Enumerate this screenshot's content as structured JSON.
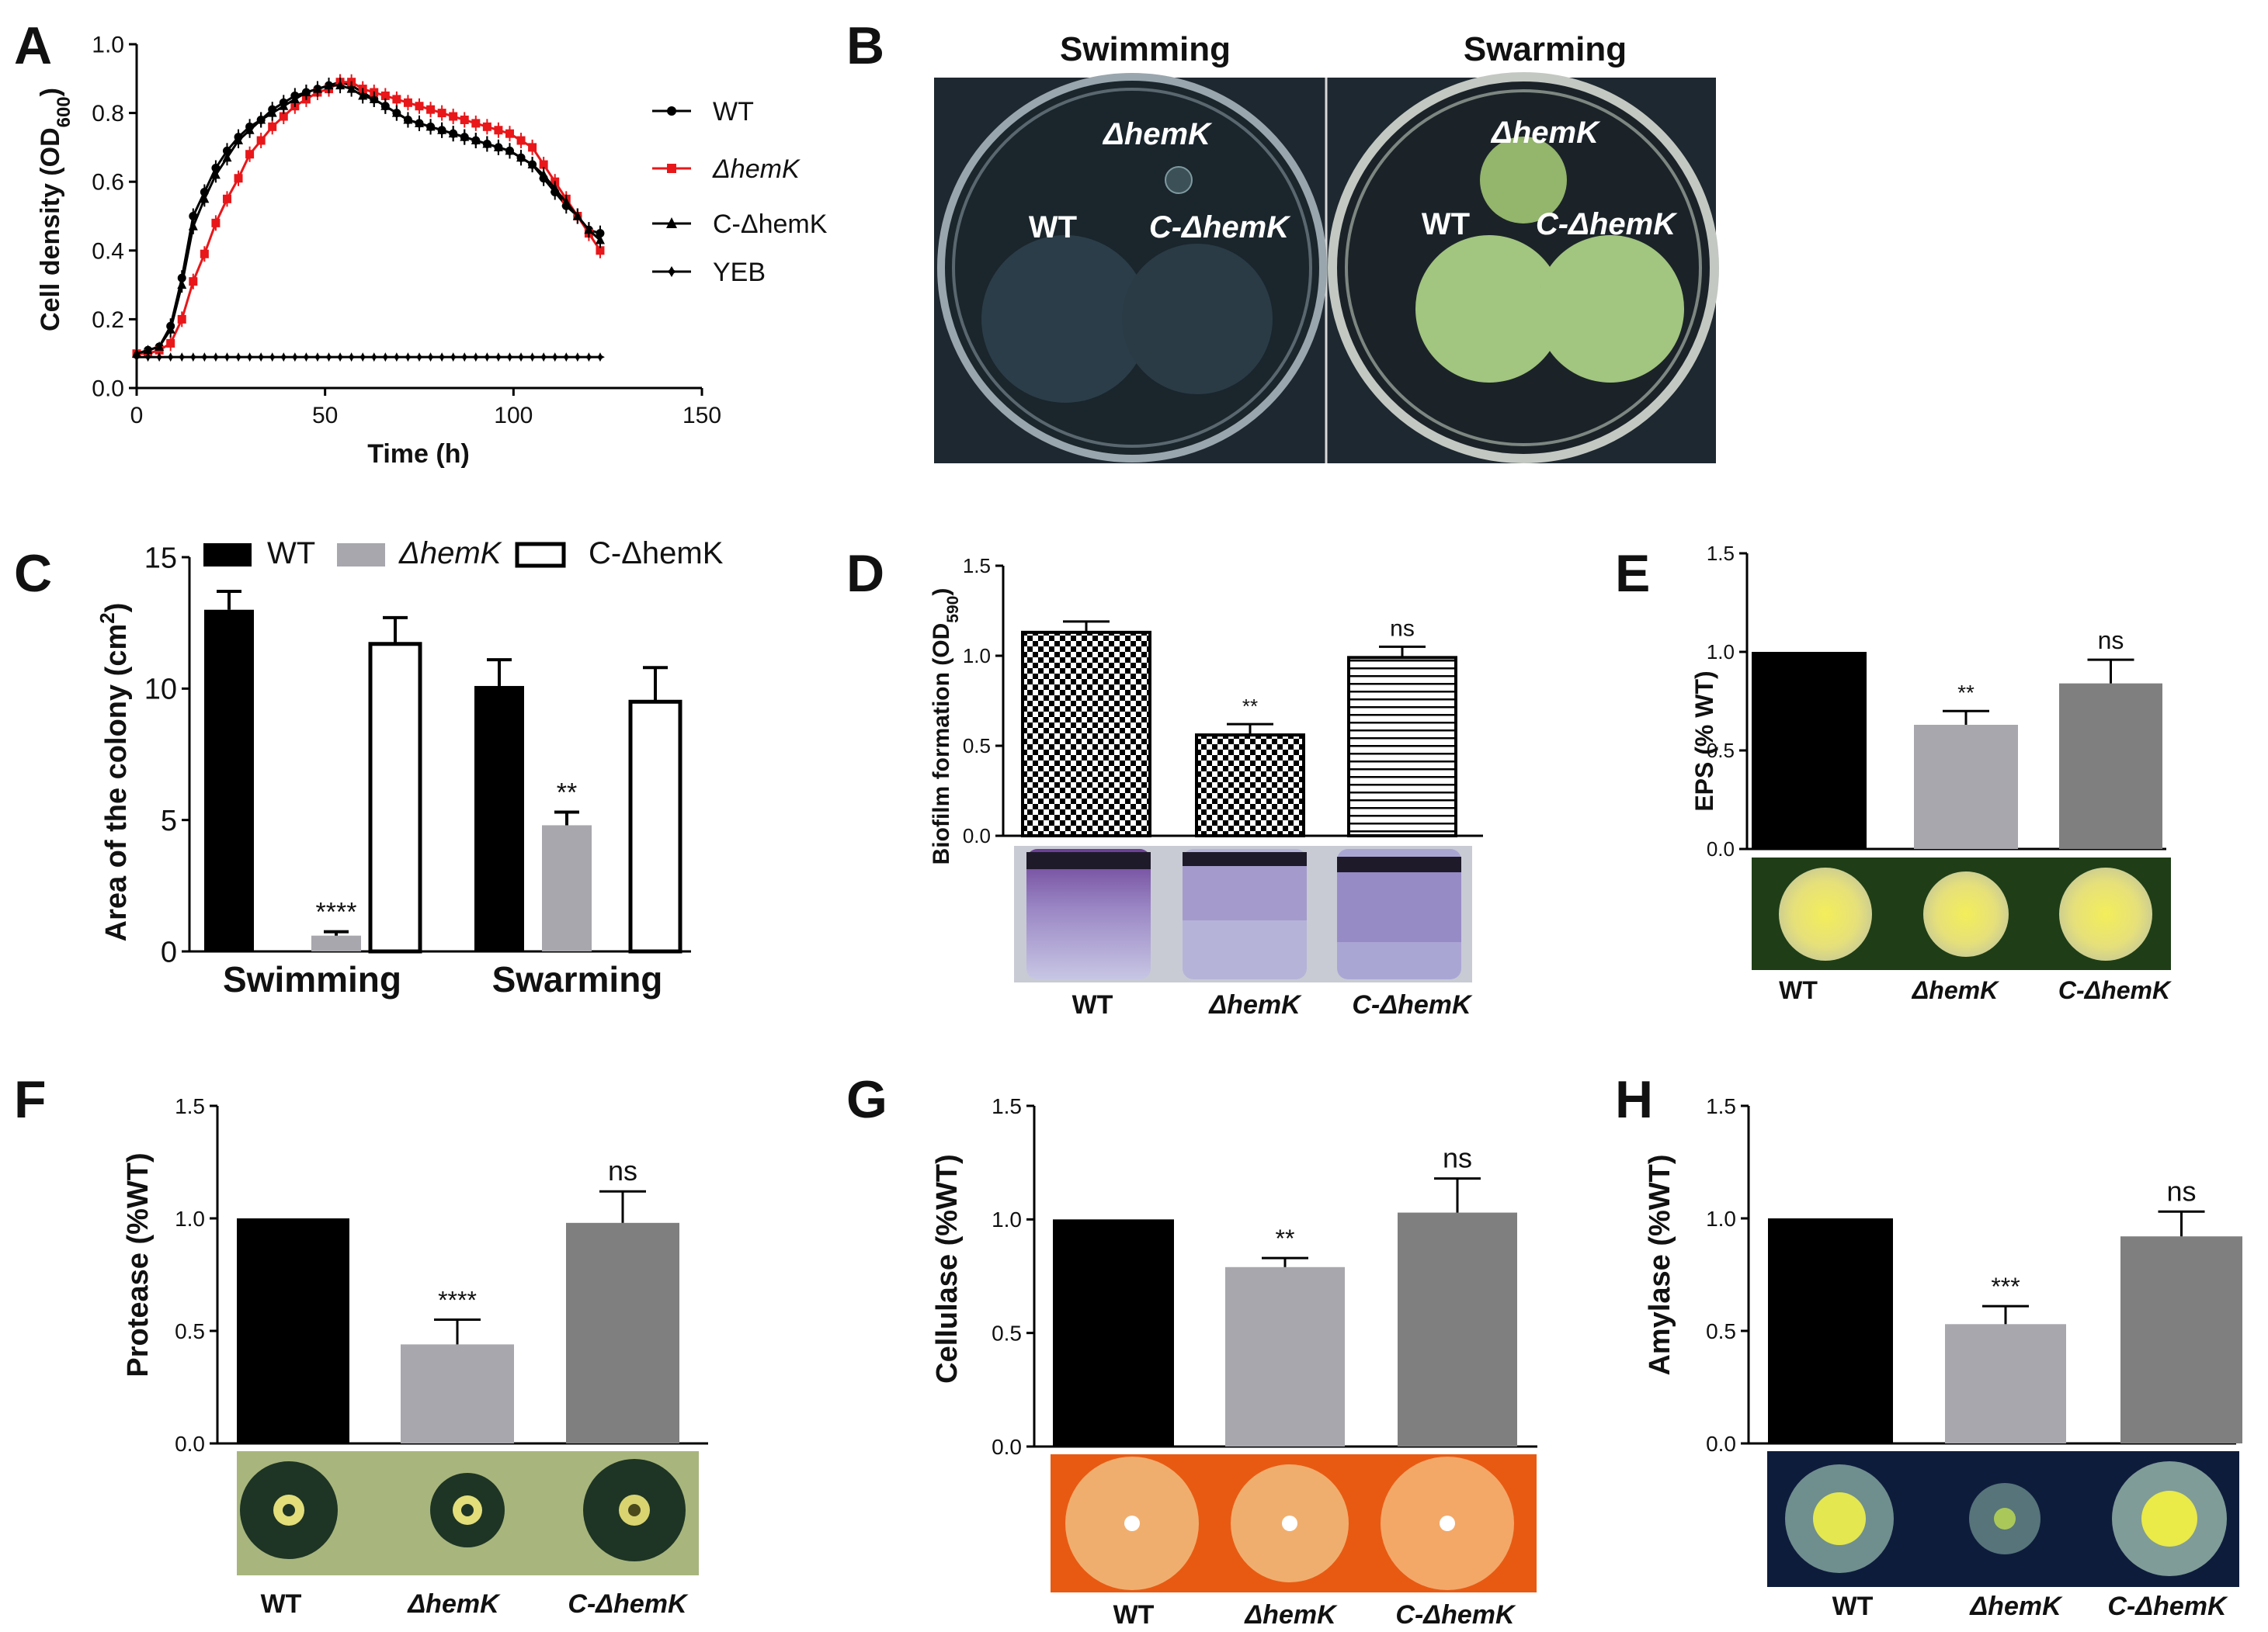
{
  "panel_letters": [
    "A",
    "B",
    "C",
    "D",
    "E",
    "F",
    "G",
    "H"
  ],
  "colors": {
    "wt": "#000000",
    "mut_light": "#a7a7ad",
    "comp_dark": "#7f7f7f",
    "mut_line": "#e8171a",
    "plate_dark": "#1c2730",
    "swarm_colony": "#9fc27a",
    "protease_bg": "#a8b67d",
    "cellulase_bg": "#e85a12",
    "amylase_bg": "#0e1c3c",
    "eps_bg": "#1f3e17",
    "colony_yellow": "#e3de7a"
  },
  "panelA": {
    "legend": [
      {
        "label": "WT",
        "color": "#000000",
        "marker": "circle"
      },
      {
        "label": "ΔhemK",
        "color": "#e8171a",
        "marker": "square"
      },
      {
        "label": "C-ΔhemK",
        "color": "#000000",
        "marker": "triangle"
      },
      {
        "label": "YEB",
        "color": "#000000",
        "marker": "star"
      }
    ]
  },
  "panelB": {
    "titles": [
      "Swimming",
      "Swarming"
    ],
    "swim_labels": {
      "mut": "ΔhemK",
      "wt": "WT",
      "comp": "C-ΔhemK"
    },
    "swarm_labels": {
      "mut": "ΔhemK",
      "wt": "WT",
      "comp": "C-ΔhemK"
    }
  },
  "panelC": {
    "legend": [
      "WT",
      "ΔhemK",
      "C-ΔhemK"
    ]
  },
  "image_labels": {
    "D": [
      "WT",
      "ΔhemK",
      "C-ΔhemK"
    ],
    "E": [
      "WT",
      "ΔhemK",
      "C-ΔhemK"
    ],
    "F": [
      "WT",
      "ΔhemK",
      "C-ΔhemK"
    ],
    "G": [
      "WT",
      "ΔhemK",
      "C-ΔhemK"
    ],
    "H": [
      "WT",
      "ΔhemK",
      "C-ΔhemK"
    ]
  },
  "chart_data": [
    {
      "id": "A",
      "type": "line",
      "xlabel": "Time (h)",
      "ylabel": "Cell density (OD600)",
      "xlim": [
        0,
        150
      ],
      "ylim": [
        0,
        1.0
      ],
      "xticks": [
        0,
        50,
        100,
        150
      ],
      "yticks": [
        0.0,
        0.2,
        0.4,
        0.6,
        0.8,
        1.0
      ],
      "x": [
        0,
        3,
        6,
        9,
        12,
        15,
        18,
        21,
        24,
        27,
        30,
        33,
        36,
        39,
        42,
        45,
        48,
        51,
        54,
        57,
        60,
        63,
        66,
        69,
        72,
        75,
        78,
        81,
        84,
        87,
        90,
        93,
        96,
        99,
        102,
        105,
        108,
        111,
        114,
        117,
        120,
        123
      ],
      "series": [
        {
          "name": "WT",
          "values": [
            0.1,
            0.11,
            0.12,
            0.18,
            0.32,
            0.5,
            0.57,
            0.64,
            0.69,
            0.73,
            0.76,
            0.78,
            0.81,
            0.83,
            0.85,
            0.86,
            0.87,
            0.88,
            0.89,
            0.88,
            0.86,
            0.84,
            0.82,
            0.8,
            0.78,
            0.77,
            0.76,
            0.75,
            0.74,
            0.73,
            0.72,
            0.71,
            0.7,
            0.69,
            0.67,
            0.65,
            0.61,
            0.57,
            0.53,
            0.5,
            0.46,
            0.45
          ]
        },
        {
          "name": "ΔhemK",
          "values": [
            0.1,
            0.1,
            0.11,
            0.13,
            0.2,
            0.31,
            0.39,
            0.48,
            0.55,
            0.61,
            0.68,
            0.72,
            0.76,
            0.79,
            0.82,
            0.84,
            0.86,
            0.87,
            0.89,
            0.89,
            0.87,
            0.86,
            0.85,
            0.84,
            0.83,
            0.82,
            0.81,
            0.8,
            0.79,
            0.78,
            0.77,
            0.76,
            0.75,
            0.74,
            0.72,
            0.7,
            0.65,
            0.6,
            0.55,
            0.5,
            0.45,
            0.4
          ]
        },
        {
          "name": "C-ΔhemK",
          "values": [
            0.1,
            0.11,
            0.12,
            0.17,
            0.3,
            0.47,
            0.55,
            0.62,
            0.67,
            0.72,
            0.75,
            0.78,
            0.8,
            0.82,
            0.84,
            0.86,
            0.87,
            0.88,
            0.88,
            0.87,
            0.85,
            0.84,
            0.82,
            0.8,
            0.78,
            0.77,
            0.76,
            0.75,
            0.74,
            0.73,
            0.72,
            0.71,
            0.7,
            0.69,
            0.67,
            0.65,
            0.62,
            0.58,
            0.54,
            0.5,
            0.46,
            0.43
          ]
        },
        {
          "name": "YEB",
          "values": [
            0.09,
            0.09,
            0.09,
            0.09,
            0.09,
            0.09,
            0.09,
            0.09,
            0.09,
            0.09,
            0.09,
            0.09,
            0.09,
            0.09,
            0.09,
            0.09,
            0.09,
            0.09,
            0.09,
            0.09,
            0.09,
            0.09,
            0.09,
            0.09,
            0.09,
            0.09,
            0.09,
            0.09,
            0.09,
            0.09,
            0.09,
            0.09,
            0.09,
            0.09,
            0.09,
            0.09,
            0.09,
            0.09,
            0.09,
            0.09,
            0.09,
            0.09
          ]
        }
      ]
    },
    {
      "id": "C",
      "type": "bar",
      "ylabel": "Area of  the colony (cm2)",
      "ylim": [
        0,
        15
      ],
      "yticks": [
        0,
        5,
        10,
        15
      ],
      "categories": [
        "Swimming",
        "Swarming"
      ],
      "series": [
        {
          "name": "WT",
          "values": [
            13.0,
            10.1
          ],
          "errors": [
            0.7,
            1.0
          ]
        },
        {
          "name": "ΔhemK",
          "values": [
            0.6,
            4.8
          ],
          "errors": [
            0.15,
            0.5
          ]
        },
        {
          "name": "C-ΔhemK",
          "values": [
            11.7,
            9.5
          ],
          "errors": [
            1.0,
            1.3
          ]
        }
      ],
      "annotations": [
        {
          "category": "Swimming",
          "series": "ΔhemK",
          "text": "****"
        },
        {
          "category": "Swarming",
          "series": "ΔhemK",
          "text": "**"
        }
      ]
    },
    {
      "id": "D",
      "type": "bar",
      "ylabel": "Biofilm formation (OD590)",
      "ylim": [
        0,
        1.5
      ],
      "yticks": [
        0.0,
        0.5,
        1.0,
        1.5
      ],
      "categories": [
        "WT",
        "ΔhemK",
        "C-ΔhemK"
      ],
      "values": [
        1.13,
        0.56,
        0.99
      ],
      "errors": [
        0.06,
        0.06,
        0.06
      ],
      "annotations": [
        "",
        "**",
        "ns"
      ]
    },
    {
      "id": "E",
      "type": "bar",
      "ylabel": "EPS  (% WT)",
      "ylim": [
        0,
        1.5
      ],
      "yticks": [
        0.0,
        0.5,
        1.0,
        1.5
      ],
      "categories": [
        "WT",
        "ΔhemK",
        "C-ΔhemK"
      ],
      "values": [
        1.0,
        0.63,
        0.84
      ],
      "errors": [
        0,
        0.07,
        0.12
      ],
      "annotations": [
        "",
        "**",
        "ns"
      ]
    },
    {
      "id": "F",
      "type": "bar",
      "ylabel": "Protease (%WT)",
      "ylim": [
        0,
        1.5
      ],
      "yticks": [
        0.0,
        0.5,
        1.0,
        1.5
      ],
      "categories": [
        "WT",
        "ΔhemK",
        "C-ΔhemK"
      ],
      "values": [
        1.0,
        0.44,
        0.98
      ],
      "errors": [
        0,
        0.11,
        0.14
      ],
      "annotations": [
        "",
        "****",
        "ns"
      ]
    },
    {
      "id": "G",
      "type": "bar",
      "ylabel": "Cellulase (%WT)",
      "ylim": [
        0,
        1.5
      ],
      "yticks": [
        0.0,
        0.5,
        1.0,
        1.5
      ],
      "categories": [
        "WT",
        "ΔhemK",
        "C-ΔhemK"
      ],
      "values": [
        1.0,
        0.79,
        1.03
      ],
      "errors": [
        0,
        0.04,
        0.15
      ],
      "annotations": [
        "",
        "**",
        "ns"
      ]
    },
    {
      "id": "H",
      "type": "bar",
      "ylabel": "Amylase (%WT)",
      "ylim": [
        0,
        1.5
      ],
      "yticks": [
        0.0,
        0.5,
        1.0,
        1.5
      ],
      "categories": [
        "WT",
        "ΔhemK",
        "C-ΔhemK"
      ],
      "values": [
        1.0,
        0.53,
        0.92
      ],
      "errors": [
        0,
        0.08,
        0.11
      ],
      "annotations": [
        "",
        "***",
        "ns"
      ]
    }
  ]
}
